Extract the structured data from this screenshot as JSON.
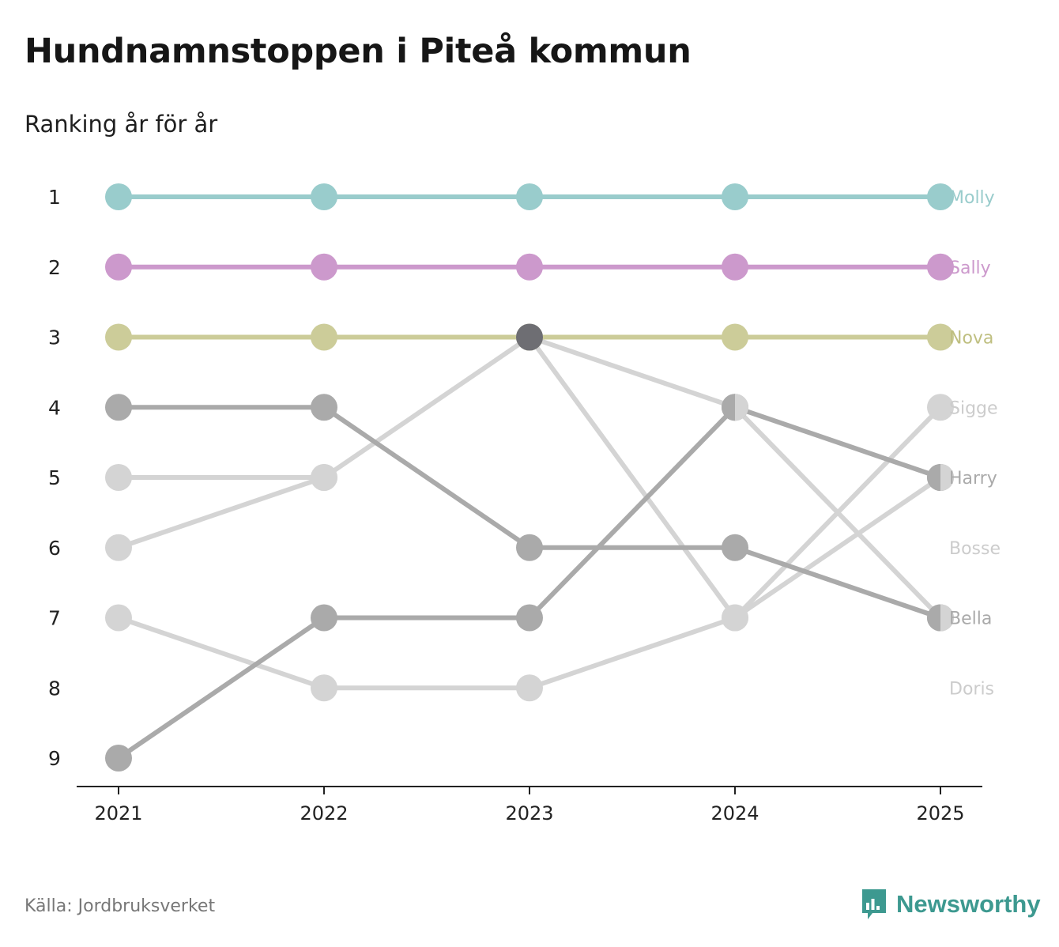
{
  "header": {
    "title": "Hundnamnstoppen i Piteå kommun",
    "subtitle": "Ranking år för år"
  },
  "footer": {
    "source": "Källa: Jordbruksverket",
    "brand": "Newsworthy",
    "brand_color": "#3d9990"
  },
  "chart_data": {
    "type": "line",
    "title": "Hundnamnstoppen i Piteå kommun",
    "subtitle": "Ranking år för år",
    "xlabel": "",
    "ylabel": "",
    "x": [
      "2021",
      "2022",
      "2023",
      "2024",
      "2025"
    ],
    "y_ticks": [
      1,
      2,
      3,
      4,
      5,
      6,
      7,
      8,
      9
    ],
    "ylim": [
      1,
      9
    ],
    "y_inverted": true,
    "grid": false,
    "series": [
      {
        "name": "Molly",
        "color": "#99cccc",
        "label_color": "#99cccc",
        "ranks": [
          1,
          1,
          1,
          1,
          1
        ]
      },
      {
        "name": "Sally",
        "color": "#cc99cc",
        "label_color": "#cc99cc",
        "ranks": [
          2,
          2,
          2,
          2,
          2
        ]
      },
      {
        "name": "Nova",
        "color": "#cccc99",
        "label_color": "#bfbf80",
        "ranks": [
          3,
          3,
          3,
          3,
          3
        ]
      },
      {
        "name": "Sigge",
        "color": "#d4d4d4",
        "label_color": "#cccccc",
        "ranks": [
          6,
          5,
          3,
          7,
          4
        ]
      },
      {
        "name": "Harry",
        "color": "#aaaaaa",
        "label_color": "#aaaaaa",
        "ranks": [
          9,
          7,
          7,
          4,
          5
        ]
      },
      {
        "name": "Bosse",
        "color": "#d4d4d4",
        "label_color": "#cccccc",
        "ranks": [
          5,
          5,
          null,
          null,
          null
        ]
      },
      {
        "name": "Bella",
        "color": "#aaaaaa",
        "label_color": "#aaaaaa",
        "ranks": [
          4,
          4,
          6,
          6,
          7
        ]
      },
      {
        "name": "Doris",
        "color": "#d4d4d4",
        "label_color": "#cccccc",
        "ranks": [
          7,
          8,
          8,
          7,
          5
        ]
      },
      {
        "name": "",
        "color": "#d4d4d4",
        "label_color": "#cccccc",
        "ranks": [
          null,
          null,
          3,
          4,
          7
        ]
      }
    ],
    "end_labels": [
      {
        "name": "Molly",
        "rank": 1,
        "color": "#99cccc"
      },
      {
        "name": "Sally",
        "rank": 2,
        "color": "#cc99cc"
      },
      {
        "name": "Nova",
        "rank": 3,
        "color": "#bfbf80"
      },
      {
        "name": "Sigge",
        "rank": 4,
        "color": "#cccccc"
      },
      {
        "name": "Harry",
        "rank": 5,
        "color": "#aaaaaa"
      },
      {
        "name": "Bosse",
        "rank": 6,
        "color": "#cccccc"
      },
      {
        "name": "Bella",
        "rank": 7,
        "color": "#aaaaaa"
      },
      {
        "name": "Doris",
        "rank": 8,
        "color": "#cccccc"
      }
    ],
    "highlight_points": [
      {
        "year": "2023",
        "rank": 3,
        "color": "#6e6e73"
      }
    ],
    "split_points": [
      {
        "year": "2024",
        "rank": 4,
        "left": "#aaaaaa",
        "right": "#d4d4d4"
      },
      {
        "year": "2025",
        "rank": 5,
        "left": "#aaaaaa",
        "right": "#d4d4d4"
      },
      {
        "year": "2025",
        "rank": 7,
        "left": "#aaaaaa",
        "right": "#d4d4d4"
      }
    ]
  }
}
